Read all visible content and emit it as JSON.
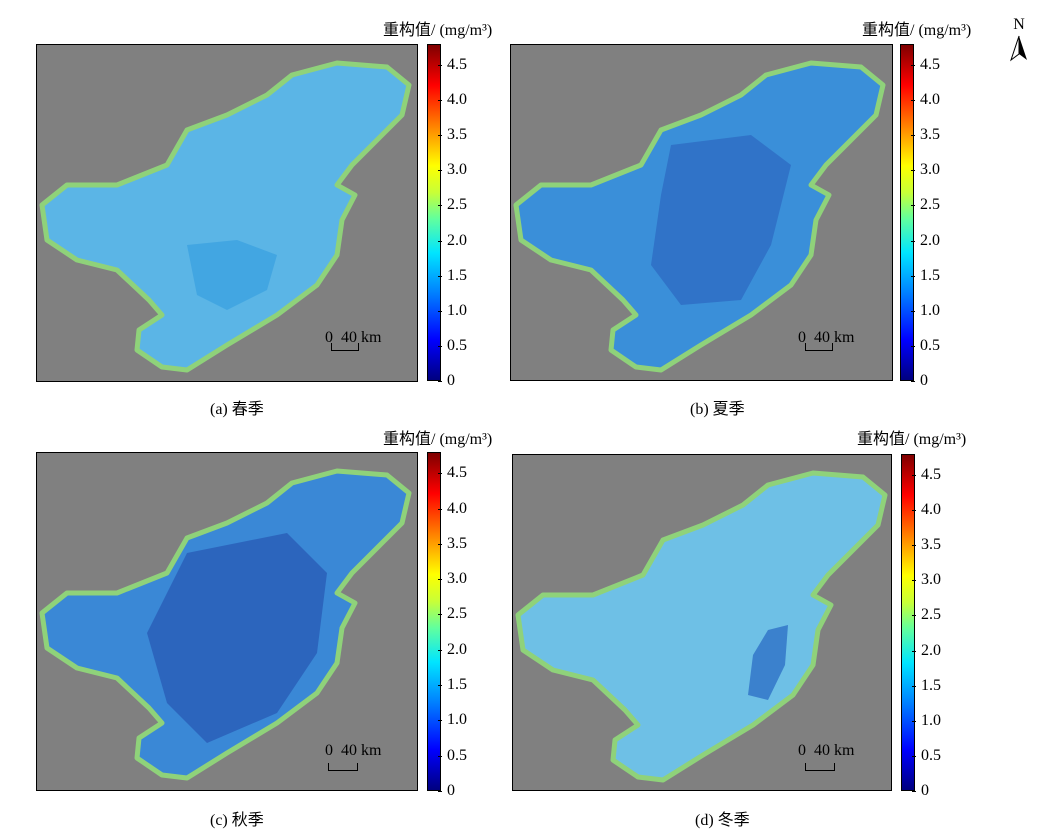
{
  "unit_label": "重构值/ (mg/m³)",
  "north_label": "N",
  "scale": {
    "zero": "0",
    "value": "40 km"
  },
  "colorbar_ticks": [
    "4.5",
    "4.0",
    "3.5",
    "3.0",
    "2.5",
    "2.0",
    "1.5",
    "1.0",
    "0.5",
    "0"
  ],
  "colorbar_range": [
    0,
    4.8
  ],
  "colormap": [
    "#00007f",
    "#0000ff",
    "#0080ff",
    "#00e5ff",
    "#60ff9f",
    "#c8ff37",
    "#ffff00",
    "#ff8000",
    "#ff0000",
    "#7f0000"
  ],
  "background_color": "#808080",
  "panels": [
    {
      "id": "a",
      "caption": "(a) 春季",
      "fill": "#5bb5e6",
      "core": "#3ea3e0"
    },
    {
      "id": "b",
      "caption": "(b) 夏季",
      "fill": "#3a8fd9",
      "core": "#2f6fc4"
    },
    {
      "id": "c",
      "caption": "(c) 秋季",
      "fill": "#3a88d6",
      "core": "#2a5fb8"
    },
    {
      "id": "d",
      "caption": "(d) 冬季",
      "fill": "#6ec0e6",
      "core": "#3276c8"
    }
  ]
}
